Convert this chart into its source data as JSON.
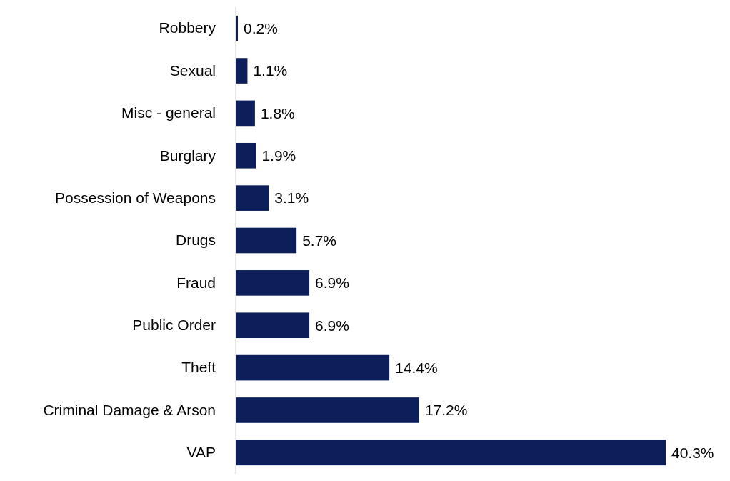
{
  "chart_data": {
    "type": "bar",
    "orientation": "horizontal",
    "categories": [
      "Robbery",
      "Sexual",
      "Misc - general",
      "Burglary",
      "Possession of Weapons",
      "Drugs",
      "Fraud",
      "Public Order",
      "Theft",
      "Criminal Damage & Arson",
      "VAP"
    ],
    "values": [
      0.2,
      1.1,
      1.8,
      1.9,
      3.1,
      5.7,
      6.9,
      6.9,
      14.4,
      17.2,
      40.3
    ],
    "value_labels": [
      "0.2%",
      "1.1%",
      "1.8%",
      "1.9%",
      "3.1%",
      "5.7%",
      "6.9%",
      "6.9%",
      "14.4%",
      "17.2%",
      "40.3%"
    ],
    "color": "#0c1f5b"
  }
}
